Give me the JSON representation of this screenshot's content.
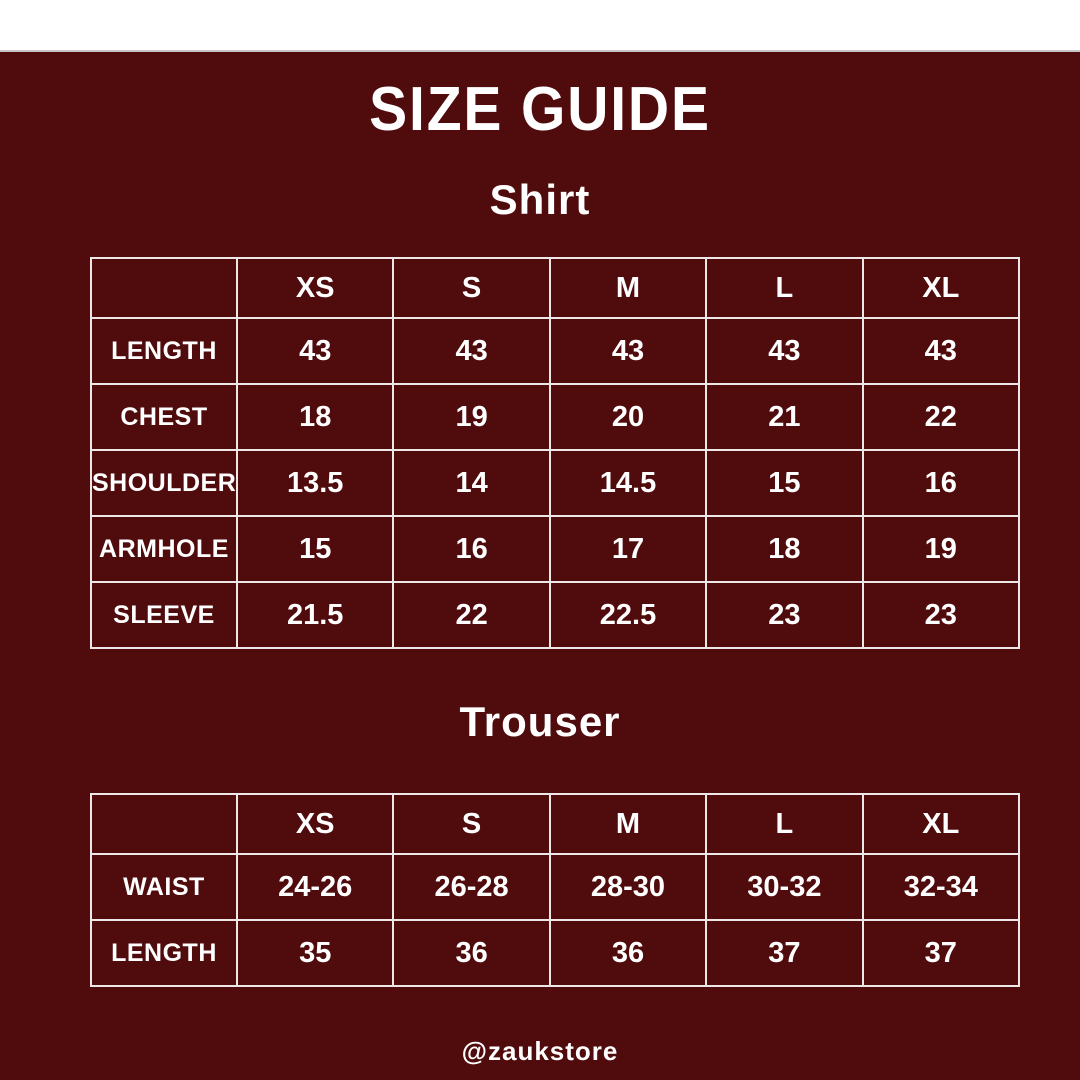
{
  "colors": {
    "background": "#500b0d",
    "top_band": "#ffffff",
    "table_border": "#ece8e8",
    "text": "#ffffff"
  },
  "title": "SIZE GUIDE",
  "footer_handle": "@zaukstore",
  "chart_data": [
    {
      "type": "table",
      "title": "Shirt",
      "columns": [
        "",
        "XS",
        "S",
        "M",
        "L",
        "XL"
      ],
      "rows": [
        {
          "label": "LENGTH",
          "values": [
            "43",
            "43",
            "43",
            "43",
            "43"
          ]
        },
        {
          "label": "CHEST",
          "values": [
            "18",
            "19",
            "20",
            "21",
            "22"
          ]
        },
        {
          "label": "SHOULDER",
          "values": [
            "13.5",
            "14",
            "14.5",
            "15",
            "16"
          ]
        },
        {
          "label": "ARMHOLE",
          "values": [
            "15",
            "16",
            "17",
            "18",
            "19"
          ]
        },
        {
          "label": "SLEEVE",
          "values": [
            "21.5",
            "22",
            "22.5",
            "23",
            "23"
          ]
        }
      ]
    },
    {
      "type": "table",
      "title": "Trouser",
      "columns": [
        "",
        "XS",
        "S",
        "M",
        "L",
        "XL"
      ],
      "rows": [
        {
          "label": "WAIST",
          "values": [
            "24-26",
            "26-28",
            "28-30",
            "30-32",
            "32-34"
          ]
        },
        {
          "label": "LENGTH",
          "values": [
            "35",
            "36",
            "36",
            "37",
            "37"
          ]
        }
      ]
    }
  ]
}
